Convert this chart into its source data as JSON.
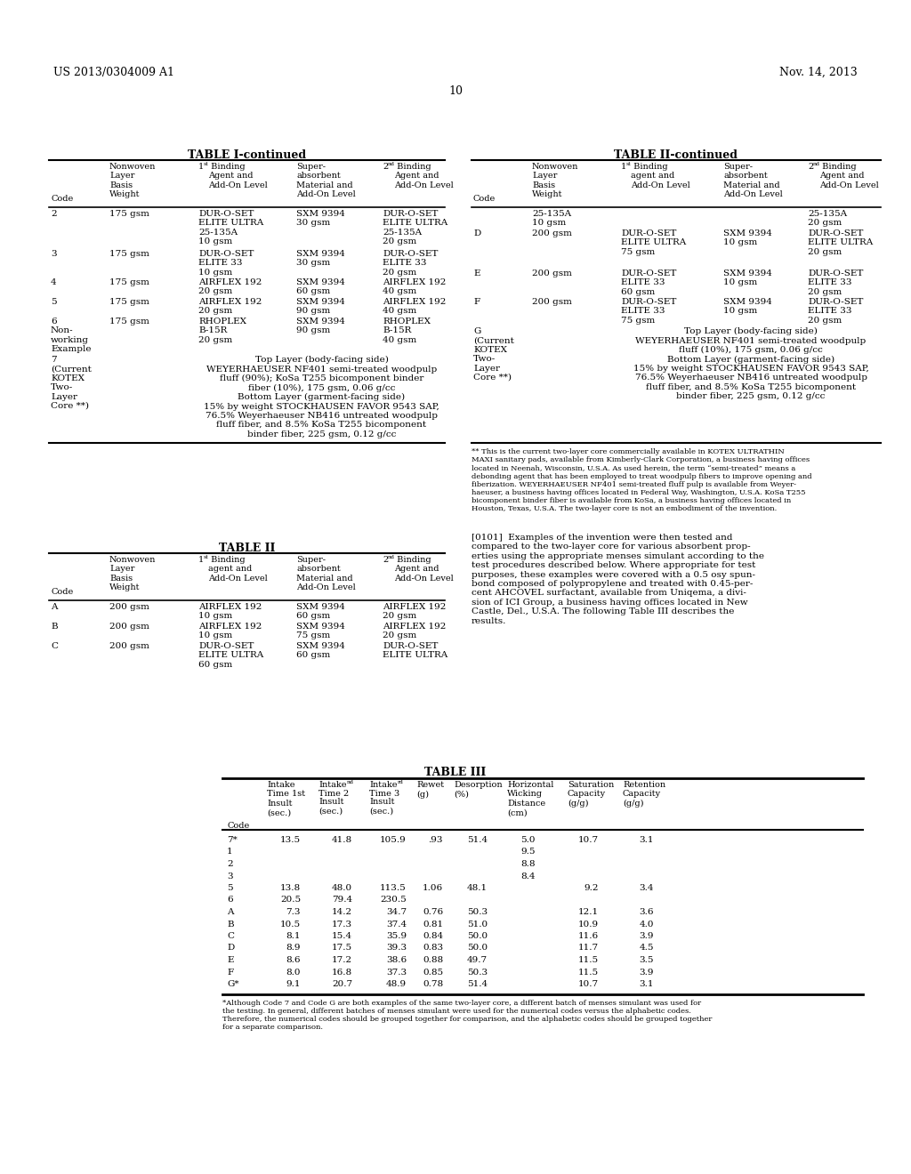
{
  "bg_color": "#ffffff",
  "page_header_left": "US 2013/0304009 A1",
  "page_header_right": "Nov. 14, 2013",
  "page_number": "10",
  "table1_continued_title": "TABLE I-continued",
  "table2_continued_title": "TABLE II-continued",
  "table2_title": "TABLE II",
  "table3_title": "TABLE III",
  "footnote_t3": "*Although Code 7 and Code G are both examples of the same two-layer core, a different batch of menses simulant was used for\nthe testing. In general, different batches of menses simulant were used for the numerical codes versus the alphabetic codes.\nTherefore, the numerical codes should be grouped together for comparison, and the alphabetic codes should be grouped together\nfor a separate comparison.",
  "right_footnote": "** This is the current two-layer core commercially available in KOTEX ULTRATHIN\nMAXI sanitary pads, available from Kimberly-Clark Corporation, a business having offices\nlocated in Neenah, Wisconsin, U.S.A. As used herein, the term “semi-treated” means a\ndebonding agent that has been employed to treat woodpulp fibers to improve opening and\nfiberization. WEYERHAEUSER NF401 semi-treated fluff pulp is available from Weyer-\nhaeuser, a business having offices located in Federal Way, Washington, U.S.A. KoSa T255\nbicomponent binder fiber is available from KoSa, a business having offices located in\nHouston, Texas, U.S.A. The two-layer core is not an embodiment of the invention.",
  "paragraph_text": "[0101]  Examples of the invention were then tested and\ncompared to the two-layer core for various absorbent prop-\nerties using the appropriate menses simulant according to the\ntest procedures described below. Where appropriate for test\npurposes, these examples were covered with a 0.5 osy spun-\nbond composed of polypropylene and treated with 0.45-per-\ncent AHCOVEL surfactant, available from Uniqema, a divi-\nsion of ICI Group, a business having offices located in New\nCastle, Del., U.S.A. The following Table III describes the\nresults.",
  "table3_rows": [
    {
      "code": "7*",
      "v1": "13.5",
      "v2": "41.8",
      "v3": "105.9",
      "v4": ".93",
      "v5": "51.4",
      "v6": "5.0",
      "v7": "10.7",
      "v8": "3.1"
    },
    {
      "code": "1",
      "v1": "",
      "v2": "",
      "v3": "",
      "v4": "",
      "v5": "",
      "v6": "9.5",
      "v7": "",
      "v8": ""
    },
    {
      "code": "2",
      "v1": "",
      "v2": "",
      "v3": "",
      "v4": "",
      "v5": "",
      "v6": "8.8",
      "v7": "",
      "v8": ""
    },
    {
      "code": "3",
      "v1": "",
      "v2": "",
      "v3": "",
      "v4": "",
      "v5": "",
      "v6": "8.4",
      "v7": "",
      "v8": ""
    },
    {
      "code": "5",
      "v1": "13.8",
      "v2": "48.0",
      "v3": "113.5",
      "v4": "1.06",
      "v5": "48.1",
      "v6": "",
      "v7": "9.2",
      "v8": "3.4"
    },
    {
      "code": "6",
      "v1": "20.5",
      "v2": "79.4",
      "v3": "230.5",
      "v4": "",
      "v5": "",
      "v6": "",
      "v7": "",
      "v8": ""
    },
    {
      "code": "A",
      "v1": "7.3",
      "v2": "14.2",
      "v3": "34.7",
      "v4": "0.76",
      "v5": "50.3",
      "v6": "",
      "v7": "12.1",
      "v8": "3.6"
    },
    {
      "code": "B",
      "v1": "10.5",
      "v2": "17.3",
      "v3": "37.4",
      "v4": "0.81",
      "v5": "51.0",
      "v6": "",
      "v7": "10.9",
      "v8": "4.0"
    },
    {
      "code": "C",
      "v1": "8.1",
      "v2": "15.4",
      "v3": "35.9",
      "v4": "0.84",
      "v5": "50.0",
      "v6": "",
      "v7": "11.6",
      "v8": "3.9"
    },
    {
      "code": "D",
      "v1": "8.9",
      "v2": "17.5",
      "v3": "39.3",
      "v4": "0.83",
      "v5": "50.0",
      "v6": "",
      "v7": "11.7",
      "v8": "4.5"
    },
    {
      "code": "E",
      "v1": "8.6",
      "v2": "17.2",
      "v3": "38.6",
      "v4": "0.88",
      "v5": "49.7",
      "v6": "",
      "v7": "11.5",
      "v8": "3.5"
    },
    {
      "code": "F",
      "v1": "8.0",
      "v2": "16.8",
      "v3": "37.3",
      "v4": "0.85",
      "v5": "50.3",
      "v6": "",
      "v7": "11.5",
      "v8": "3.9"
    },
    {
      "code": "G*",
      "v1": "9.1",
      "v2": "20.7",
      "v3": "48.9",
      "v4": "0.78",
      "v5": "51.4",
      "v6": "",
      "v7": "10.7",
      "v8": "3.1"
    }
  ]
}
